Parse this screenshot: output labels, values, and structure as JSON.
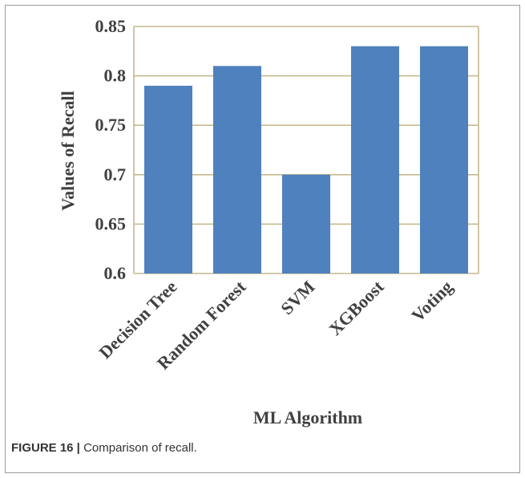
{
  "chart_data": {
    "type": "bar",
    "categories": [
      "Decision Tree",
      "Random Forest",
      "SVM",
      "XGBoost",
      "Voting"
    ],
    "values": [
      0.79,
      0.81,
      0.7,
      0.83,
      0.83
    ],
    "title": "",
    "xlabel": "ML Algorithm",
    "ylabel": "Values of Recall",
    "ylim": [
      0.6,
      0.85
    ],
    "yticks": [
      "0.6",
      "0.65",
      "0.7",
      "0.75",
      "0.8",
      "0.85"
    ],
    "grid": true,
    "legend": "none",
    "bar_color": "#4e81bd",
    "grid_color": "#c6b98d"
  },
  "caption": {
    "label": "FIGURE 16 |",
    "text": "Comparison of recall."
  }
}
